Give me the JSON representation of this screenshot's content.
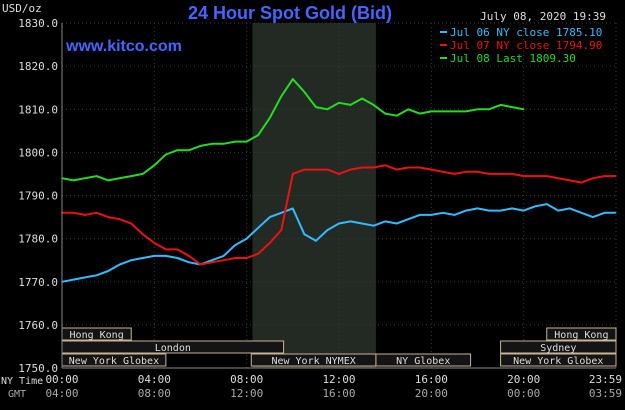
{
  "chart_data": {
    "type": "line",
    "title": "24 Hour Spot Gold (Bid)",
    "timestamp": "July 08, 2020 19:39",
    "watermark": "www.kitco.com",
    "ylabel": "USD/oz",
    "ylim": [
      1750,
      1830
    ],
    "yticks": [
      "1830.0",
      "1820.0",
      "1810.0",
      "1800.0",
      "1790.0",
      "1780.0",
      "1770.0",
      "1760.0",
      "1750.0"
    ],
    "xlim": [
      0,
      24
    ],
    "x_ticks_ny": [
      "00:00",
      "04:00",
      "08:00",
      "12:00",
      "16:00",
      "20:00",
      "23:59"
    ],
    "x_ticks_gmt": [
      "04:00",
      "08:00",
      "12:00",
      "16:00",
      "20:00",
      "00:00",
      "03:59"
    ],
    "x_axis_labels": {
      "ny": "NY Time",
      "gmt": "GMT"
    },
    "highlight_range": [
      8.25,
      13.6
    ],
    "grid": true,
    "legend_position": "top-right",
    "series": [
      {
        "name": "Jul 06 NY close 1785.10",
        "color": "#33bbff",
        "x": [
          0,
          0.5,
          1,
          1.5,
          2,
          2.5,
          3,
          3.5,
          4,
          4.5,
          5,
          5.5,
          6,
          6.5,
          7,
          7.5,
          8,
          8.5,
          9,
          9.5,
          10,
          10.5,
          11,
          11.5,
          12,
          12.5,
          13,
          13.5,
          14,
          14.5,
          15,
          15.5,
          16,
          16.5,
          17,
          17.5,
          18,
          18.5,
          19,
          19.5,
          20,
          20.5,
          21,
          21.5,
          22,
          22.5,
          23,
          23.5,
          23.98
        ],
        "values": [
          1770.0,
          1770.5,
          1771.0,
          1771.5,
          1772.5,
          1774.0,
          1775.0,
          1775.5,
          1776.0,
          1776.0,
          1775.5,
          1774.5,
          1774.0,
          1775.0,
          1776.0,
          1778.5,
          1780.0,
          1782.5,
          1785.0,
          1786.0,
          1787.0,
          1781.0,
          1779.5,
          1782.0,
          1783.5,
          1784.0,
          1783.5,
          1783.0,
          1784.0,
          1783.5,
          1784.5,
          1785.5,
          1785.5,
          1786.0,
          1785.5,
          1786.5,
          1787.0,
          1786.5,
          1786.5,
          1787.0,
          1786.5,
          1787.5,
          1788.0,
          1786.5,
          1787.0,
          1786.0,
          1785.0,
          1786.0,
          1786.0
        ]
      },
      {
        "name": "Jul 07 NY close 1794.90",
        "color": "#ee1111",
        "x": [
          0,
          0.5,
          1,
          1.5,
          2,
          2.5,
          3,
          3.5,
          4,
          4.5,
          5,
          5.5,
          6,
          6.5,
          7,
          7.5,
          8,
          8.5,
          9,
          9.5,
          10,
          10.5,
          11,
          11.5,
          12,
          12.5,
          13,
          13.5,
          14,
          14.5,
          15,
          15.5,
          16,
          16.5,
          17,
          17.5,
          18,
          18.5,
          19,
          19.5,
          20,
          20.5,
          21,
          21.5,
          22,
          22.5,
          23,
          23.5,
          23.98
        ],
        "values": [
          1786.0,
          1786.0,
          1785.5,
          1786.0,
          1785.0,
          1784.5,
          1783.5,
          1781.0,
          1779.0,
          1777.5,
          1777.5,
          1776.0,
          1774.0,
          1774.5,
          1775.0,
          1775.5,
          1775.5,
          1776.5,
          1779.0,
          1782.0,
          1795.0,
          1796.0,
          1796.0,
          1796.0,
          1795.0,
          1796.0,
          1796.5,
          1796.5,
          1797.0,
          1796.0,
          1796.5,
          1796.5,
          1796.0,
          1795.5,
          1795.0,
          1795.5,
          1795.5,
          1795.0,
          1795.0,
          1795.0,
          1794.5,
          1794.5,
          1794.5,
          1794.0,
          1793.5,
          1793.0,
          1794.0,
          1794.5,
          1794.5
        ]
      },
      {
        "name": "Jul 08 Last 1809.30",
        "color": "#22dd22",
        "x": [
          0,
          0.5,
          1,
          1.5,
          2,
          2.5,
          3,
          3.5,
          4,
          4.5,
          5,
          5.5,
          6,
          6.5,
          7,
          7.5,
          8,
          8.5,
          9,
          9.5,
          10,
          10.5,
          11,
          11.5,
          12,
          12.5,
          13,
          13.5,
          14,
          14.5,
          15,
          15.5,
          16,
          16.5,
          17,
          17.5,
          18,
          18.5,
          19,
          19.5,
          20
        ],
        "values": [
          1794.0,
          1793.5,
          1794.0,
          1794.5,
          1793.5,
          1794.0,
          1794.5,
          1795.0,
          1797.0,
          1799.5,
          1800.5,
          1800.5,
          1801.5,
          1802.0,
          1802.0,
          1802.5,
          1802.5,
          1804.0,
          1808.0,
          1813.0,
          1817.0,
          1814.0,
          1810.5,
          1810.0,
          1811.5,
          1811.0,
          1812.5,
          1811.0,
          1809.0,
          1808.5,
          1810.0,
          1809.0,
          1809.5,
          1809.5,
          1809.5,
          1809.5,
          1810.0,
          1810.0,
          1811.0,
          1810.5,
          1810.0
        ]
      }
    ],
    "sessions": [
      {
        "label": "Hong Kong",
        "row": 1,
        "start": 0,
        "end": 3.0
      },
      {
        "label": "London",
        "row": 2,
        "start": 0,
        "end": 9.6
      },
      {
        "label": "New York Globex",
        "row": 3,
        "start": 0,
        "end": 4.5
      },
      {
        "label": "New York NYMEX",
        "row": 3,
        "start": 8.2,
        "end": 13.6
      },
      {
        "label": "NY Globex",
        "row": 3,
        "start": 13.6,
        "end": 17.7
      },
      {
        "label": "Hong Kong",
        "row": 1,
        "start": 21.0,
        "end": 24.0
      },
      {
        "label": "Sydney",
        "row": 2,
        "start": 19.0,
        "end": 24.0
      },
      {
        "label": "New York Globex",
        "row": 3,
        "start": 19.0,
        "end": 24.0
      }
    ]
  }
}
